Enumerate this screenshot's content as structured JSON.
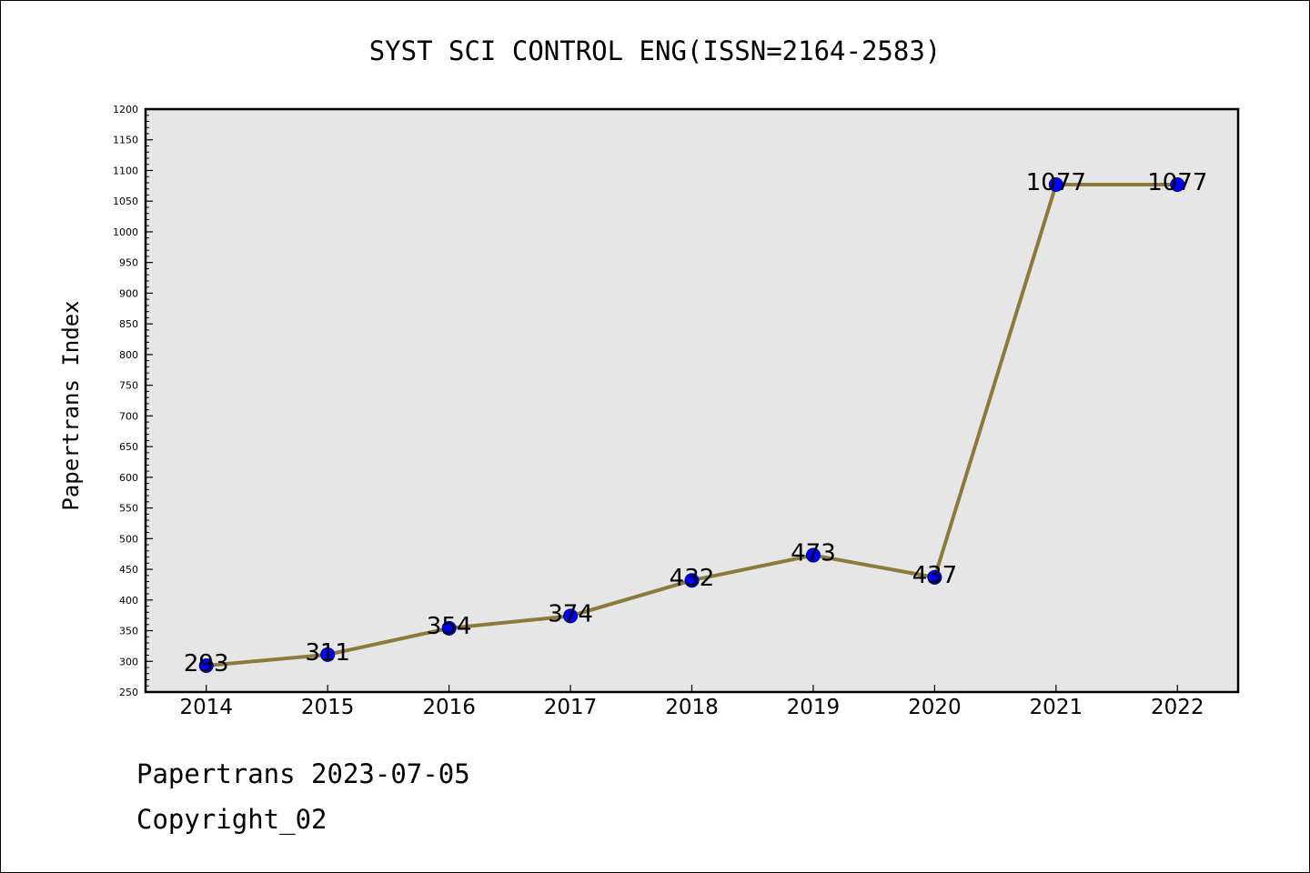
{
  "chart_data": {
    "type": "line",
    "title": "SYST SCI CONTROL ENG(ISSN=2164-2583)",
    "xlabel": "",
    "ylabel": "Papertrans Index",
    "categories": [
      "2014",
      "2015",
      "2016",
      "2017",
      "2018",
      "2019",
      "2020",
      "2021",
      "2022"
    ],
    "values": [
      293,
      311,
      354,
      374,
      432,
      473,
      437,
      1077,
      1077
    ],
    "data_labels": [
      "293",
      "311",
      "354",
      "374",
      "432",
      "473",
      "437",
      "1077",
      "1077"
    ],
    "ylim": [
      250,
      1200
    ],
    "yticks": [
      250,
      300,
      350,
      400,
      450,
      500,
      550,
      600,
      650,
      700,
      750,
      800,
      850,
      900,
      950,
      1000,
      1050,
      1100,
      1150,
      1200
    ],
    "grid": false,
    "legend": "none",
    "colors": {
      "line": "#8B7B3A",
      "marker_fill": "#0000FF",
      "marker_edge": "#00008B",
      "plot_background": "#E6E6E6",
      "axes_edge": "#000000"
    }
  },
  "footer": {
    "line1": "Papertrans 2023-07-05",
    "line2": "Copyright_02"
  }
}
